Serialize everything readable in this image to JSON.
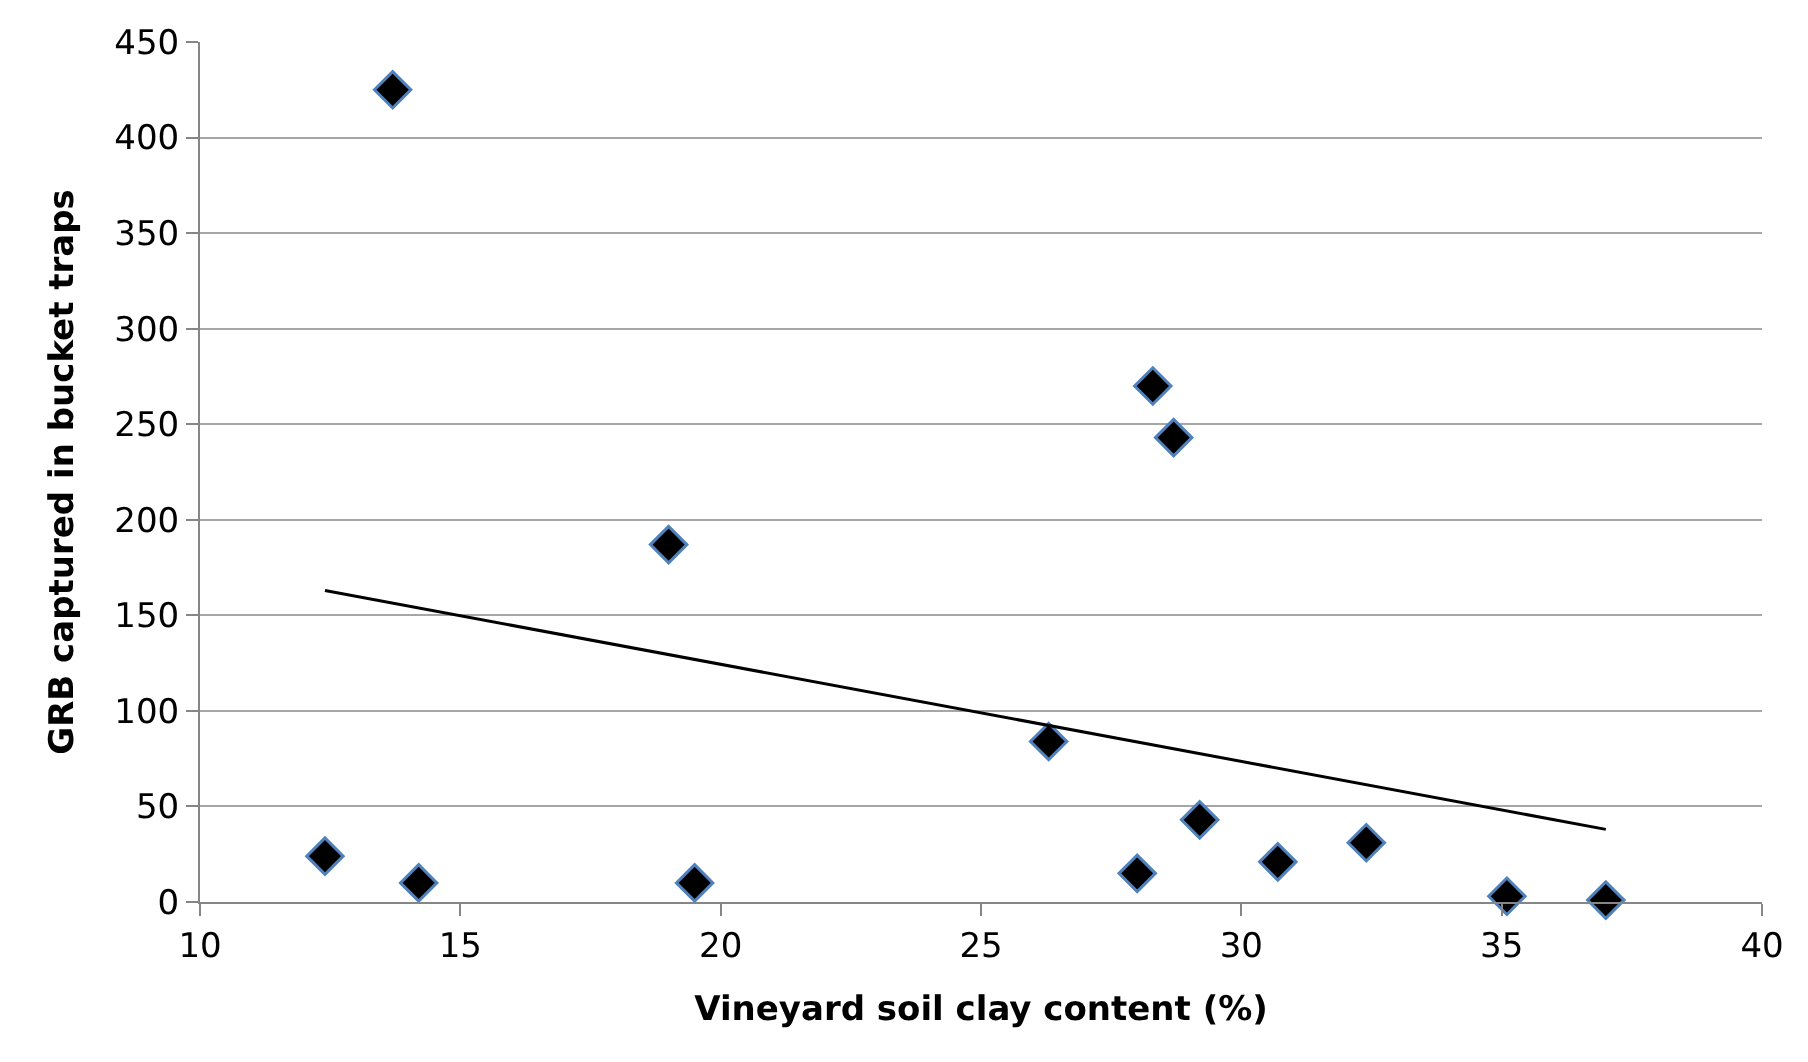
{
  "chart_data": {
    "type": "scatter",
    "xlabel": "Vineyard soil clay content (%)",
    "ylabel": "GRB captured in bucket traps",
    "xlim": [
      10,
      40
    ],
    "xticks": [
      10,
      15,
      20,
      25,
      30,
      35,
      40
    ],
    "ylim": [
      0,
      450
    ],
    "yticks": [
      0,
      50,
      100,
      150,
      200,
      250,
      300,
      350,
      400,
      450
    ],
    "grid": "y",
    "marker": "diamond",
    "series": [
      {
        "color": "#000000",
        "x": [
          12.4,
          13.7,
          14.2,
          19.0,
          19.5,
          26.3,
          28.3,
          28.7,
          28.0,
          29.2,
          30.7,
          32.4,
          35.1,
          37.0
        ],
        "values": [
          24,
          425,
          10,
          187,
          10,
          84,
          270,
          243,
          15,
          43,
          21,
          31,
          3,
          1
        ]
      },
      {
        "type": "line",
        "marker": "none",
        "color": "#000000",
        "x": [
          12.4,
          37.0
        ],
        "values": [
          163,
          38
        ]
      }
    ]
  }
}
